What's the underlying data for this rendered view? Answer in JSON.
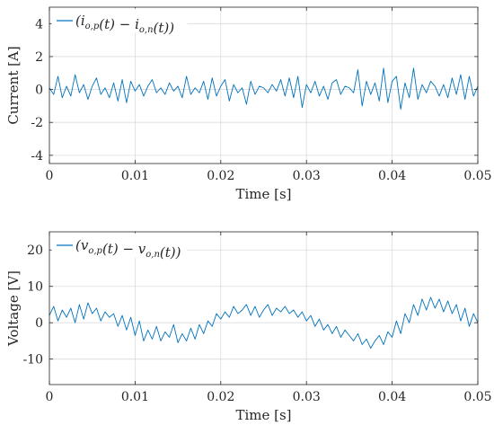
{
  "colors": {
    "series": "#0072bd",
    "axis": "#262626",
    "grid": "#dcdcdc"
  },
  "chart_data": [
    {
      "type": "line",
      "title": "",
      "xlabel": "Time [s]",
      "ylabel": "Current [A]",
      "xlim": [
        0,
        0.05
      ],
      "ylim": [
        -4.5,
        5
      ],
      "xticks": [
        0,
        0.01,
        0.02,
        0.03,
        0.04,
        0.05
      ],
      "xtick_labels": [
        "0",
        "0.01",
        "0.02",
        "0.03",
        "0.04",
        "0.05"
      ],
      "yticks": [
        -4,
        -2,
        0,
        2,
        4
      ],
      "ytick_labels": [
        "-4",
        "-2",
        "0",
        "2",
        "4"
      ],
      "grid": true,
      "legend": "top-left",
      "series": [
        {
          "name": "(i_{o,p}(t) − i_{o,n}(t))",
          "legend_main": "(i",
          "legend_sub1": "o,p",
          "legend_mid": "(t) − i",
          "legend_sub2": "o,n",
          "legend_end": "(t))",
          "x": [
            0,
            0.0005,
            0.001,
            0.0015,
            0.002,
            0.0025,
            0.003,
            0.0035,
            0.004,
            0.0045,
            0.005,
            0.0055,
            0.006,
            0.0065,
            0.007,
            0.0075,
            0.008,
            0.0085,
            0.009,
            0.0095,
            0.01,
            0.0105,
            0.011,
            0.0115,
            0.012,
            0.0125,
            0.013,
            0.0135,
            0.014,
            0.0145,
            0.015,
            0.0155,
            0.016,
            0.0165,
            0.017,
            0.0175,
            0.018,
            0.0185,
            0.019,
            0.0195,
            0.02,
            0.0205,
            0.021,
            0.0215,
            0.022,
            0.0225,
            0.023,
            0.0235,
            0.024,
            0.0245,
            0.025,
            0.0255,
            0.026,
            0.0265,
            0.027,
            0.0275,
            0.028,
            0.0285,
            0.029,
            0.0295,
            0.03,
            0.0305,
            0.031,
            0.0315,
            0.032,
            0.0325,
            0.033,
            0.0335,
            0.034,
            0.0345,
            0.035,
            0.0355,
            0.036,
            0.0365,
            0.037,
            0.0375,
            0.038,
            0.0385,
            0.039,
            0.0395,
            0.04,
            0.0405,
            0.041,
            0.0415,
            0.042,
            0.0425,
            0.043,
            0.0435,
            0.044,
            0.0445,
            0.045,
            0.0455,
            0.046,
            0.0465,
            0.047,
            0.0475,
            0.048,
            0.0485,
            0.049,
            0.0495,
            0.05
          ],
          "y": [
            0.1,
            -0.3,
            0.8,
            -0.5,
            0.2,
            -0.4,
            0.9,
            -0.2,
            0.3,
            -0.6,
            0.2,
            0.7,
            -0.3,
            0.1,
            -0.5,
            0.4,
            -0.7,
            0.6,
            -0.8,
            0.5,
            -0.1,
            0.3,
            -0.4,
            0.2,
            0.6,
            -0.2,
            0.1,
            -0.3,
            0.4,
            -0.1,
            0.2,
            -0.5,
            0.8,
            -0.3,
            0.1,
            -0.2,
            0.5,
            -0.6,
            0.7,
            -0.4,
            0.2,
            0.6,
            -0.7,
            0.3,
            -0.2,
            0.1,
            -0.9,
            0.5,
            -0.3,
            0.2,
            0.1,
            -0.2,
            0.3,
            -0.1,
            0.6,
            -0.4,
            0.7,
            -0.5,
            0.8,
            -1.1,
            0.3,
            -0.2,
            0.5,
            -0.4,
            0.2,
            -0.6,
            0.4,
            0.6,
            -0.3,
            0.2,
            0.1,
            -0.2,
            1.2,
            -1.0,
            0.5,
            -0.3,
            0.4,
            -0.7,
            1.3,
            -0.8,
            0.5,
            0.8,
            -1.2,
            0.4,
            -0.5,
            1.3,
            -0.6,
            0.3,
            -0.2,
            0.5,
            0.2,
            -0.4,
            0.3,
            -0.5,
            0.7,
            -0.3,
            0.9,
            -0.6,
            0.8,
            -0.4,
            0.2
          ]
        }
      ]
    },
    {
      "type": "line",
      "title": "",
      "xlabel": "Time [s]",
      "ylabel": "Voltage [V]",
      "xlim": [
        0,
        0.05
      ],
      "ylim": [
        -17,
        25
      ],
      "xticks": [
        0,
        0.01,
        0.02,
        0.03,
        0.04,
        0.05
      ],
      "xtick_labels": [
        "0",
        "0.01",
        "0.02",
        "0.03",
        "0.04",
        "0.05"
      ],
      "yticks": [
        -10,
        0,
        10,
        20
      ],
      "ytick_labels": [
        "-10",
        "0",
        "10",
        "20"
      ],
      "grid": true,
      "legend": "top-left",
      "series": [
        {
          "name": "(v_{o,p}(t) − v_{o,n}(t))",
          "legend_main": "(v",
          "legend_sub1": "o,p",
          "legend_mid": "(t) − v",
          "legend_sub2": "o,n",
          "legend_end": "(t))",
          "x": [
            0,
            0.0005,
            0.001,
            0.0015,
            0.002,
            0.0025,
            0.003,
            0.0035,
            0.004,
            0.0045,
            0.005,
            0.0055,
            0.006,
            0.0065,
            0.007,
            0.0075,
            0.008,
            0.0085,
            0.009,
            0.0095,
            0.01,
            0.0105,
            0.011,
            0.0115,
            0.012,
            0.0125,
            0.013,
            0.0135,
            0.014,
            0.0145,
            0.015,
            0.0155,
            0.016,
            0.0165,
            0.017,
            0.0175,
            0.018,
            0.0185,
            0.019,
            0.0195,
            0.02,
            0.0205,
            0.021,
            0.0215,
            0.022,
            0.0225,
            0.023,
            0.0235,
            0.024,
            0.0245,
            0.025,
            0.0255,
            0.026,
            0.0265,
            0.027,
            0.0275,
            0.028,
            0.0285,
            0.029,
            0.0295,
            0.03,
            0.0305,
            0.031,
            0.0315,
            0.032,
            0.0325,
            0.033,
            0.0335,
            0.034,
            0.0345,
            0.035,
            0.0355,
            0.036,
            0.0365,
            0.037,
            0.0375,
            0.038,
            0.0385,
            0.039,
            0.0395,
            0.04,
            0.0405,
            0.041,
            0.0415,
            0.042,
            0.0425,
            0.043,
            0.0435,
            0.044,
            0.0445,
            0.045,
            0.0455,
            0.046,
            0.0465,
            0.047,
            0.0475,
            0.048,
            0.0485,
            0.049,
            0.0495,
            0.05
          ],
          "y": [
            2.0,
            4.5,
            0.5,
            3.5,
            1.5,
            4.0,
            0.0,
            5.0,
            1.0,
            5.5,
            2.5,
            4.0,
            0.5,
            3.0,
            1.5,
            2.5,
            -1.0,
            2.0,
            -2.0,
            1.5,
            -3.5,
            0.5,
            -5.0,
            -2.0,
            -4.5,
            -1.0,
            -5.0,
            -2.5,
            -4.0,
            -0.5,
            -5.5,
            -3.0,
            -5.0,
            -1.5,
            -4.5,
            -0.5,
            -3.0,
            0.5,
            -1.0,
            2.5,
            1.0,
            3.0,
            1.5,
            4.5,
            2.5,
            3.5,
            5.0,
            2.0,
            4.5,
            1.5,
            3.5,
            5.0,
            2.0,
            4.0,
            3.0,
            4.5,
            2.5,
            3.5,
            1.5,
            3.0,
            0.5,
            2.0,
            -1.0,
            1.0,
            -2.0,
            -0.5,
            -3.0,
            -1.0,
            -4.0,
            -2.0,
            -3.5,
            -5.0,
            -3.0,
            -6.0,
            -4.5,
            -7.0,
            -5.0,
            -3.5,
            -6.0,
            -2.5,
            -4.0,
            0.5,
            -3.0,
            2.5,
            0.0,
            5.0,
            2.0,
            6.5,
            3.5,
            7.0,
            4.0,
            6.5,
            3.0,
            6.0,
            2.5,
            5.0,
            0.5,
            4.0,
            -1.0,
            2.5,
            0.0
          ]
        }
      ]
    }
  ]
}
